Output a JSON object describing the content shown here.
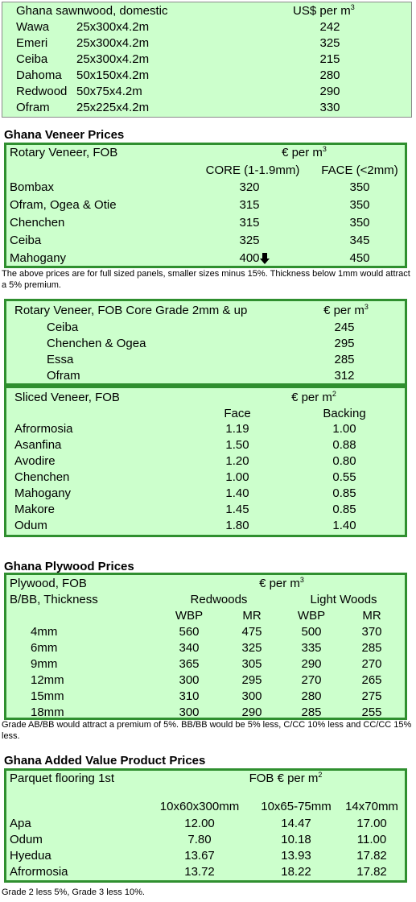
{
  "sawnwood": {
    "title": "Ghana sawnwood, domestic",
    "unit": {
      "text": "US$ per m",
      "sup": "3"
    },
    "rows": [
      [
        "Wawa",
        "25x300x4.2m",
        "242"
      ],
      [
        "Emeri",
        "25x300x4.2m",
        "325"
      ],
      [
        "Ceiba",
        "25x300x4.2m",
        "215"
      ],
      [
        "Dahoma",
        "50x150x4.2m",
        "280"
      ],
      [
        "Redwood",
        "50x75x4.2m",
        "290"
      ],
      [
        "Ofram",
        "25x225x4.2m",
        "330"
      ]
    ]
  },
  "veneer": {
    "heading": "Ghana Veneer Prices",
    "title": "Rotary Veneer, FOB",
    "unit": {
      "text": "€ per m",
      "sup": "3"
    },
    "columns": [
      "CORE (1-1.9mm)",
      "FACE (<2mm)"
    ],
    "rows": [
      [
        "Bombax",
        "320",
        "350"
      ],
      [
        "Ofram, Ogea  & Otie",
        "315",
        "350"
      ],
      [
        "Chenchen",
        "315",
        "350"
      ],
      [
        "Ceiba",
        "325",
        "345"
      ],
      [
        "Mahogany",
        "400",
        "450"
      ]
    ],
    "note": "The above prices are for full sized panels, smaller sizes minus 15%. Thickness below 1mm would attract a 5% premium."
  },
  "rotary_core": {
    "title": "Rotary Veneer, FOB Core Grade 2mm & up",
    "unit": {
      "text": "€ per m",
      "sup": "3"
    },
    "rows": [
      [
        "Ceiba",
        "245"
      ],
      [
        "Chenchen & Ogea",
        "295"
      ],
      [
        "Essa",
        "285"
      ],
      [
        "Ofram",
        "312"
      ]
    ]
  },
  "sliced": {
    "title": "Sliced Veneer, FOB",
    "unit": {
      "text": "€ per m",
      "sup": "2"
    },
    "columns": [
      "Face",
      "Backing"
    ],
    "rows": [
      [
        "Afrormosia",
        "1.19",
        "1.00"
      ],
      [
        "Asanfina",
        "1.50",
        "0.88"
      ],
      [
        "Avodire",
        "1.20",
        "0.80"
      ],
      [
        "Chenchen",
        "1.00",
        "0.55"
      ],
      [
        "Mahogany",
        "1.40",
        "0.85"
      ],
      [
        "Makore",
        "1.45",
        "0.85"
      ],
      [
        "Odum",
        "1.80",
        "1.40"
      ]
    ]
  },
  "plywood": {
    "heading": "Ghana Plywood Prices",
    "title": "Plywood, FOB",
    "unit": {
      "text": "€ per m",
      "sup": "3"
    },
    "subtitle": "B/BB, Thickness",
    "groups": [
      "Redwoods",
      "Light Woods"
    ],
    "columns": [
      "WBP",
      "MR",
      "WBP",
      "MR"
    ],
    "rows": [
      [
        "4mm",
        "560",
        "475",
        "500",
        "370"
      ],
      [
        "6mm",
        "340",
        "325",
        "335",
        "285"
      ],
      [
        "9mm",
        "365",
        "305",
        "290",
        "270"
      ],
      [
        "12mm",
        "300",
        "295",
        "270",
        "265"
      ],
      [
        "15mm",
        "310",
        "300",
        "280",
        "275"
      ],
      [
        "18mm",
        "300",
        "290",
        "285",
        "255"
      ]
    ],
    "note": "Grade AB/BB would attract a premium of 5%. BB/BB would be 5% less, C/CC 10% less and CC/CC 15% less."
  },
  "added_value": {
    "heading": "Ghana Added Value Product Prices",
    "title": "Parquet flooring 1st",
    "unit": {
      "text": "FOB € per m",
      "sup": "2"
    },
    "columns": [
      "10x60x300mm",
      "10x65-75mm",
      "14x70mm"
    ],
    "rows": [
      [
        "Apa",
        "12.00",
        "14.47",
        "17.00"
      ],
      [
        "Odum",
        "7.80",
        "10.18",
        "11.00"
      ],
      [
        "Hyedua",
        "13.67",
        "13.93",
        "17.82"
      ],
      [
        "Afrormosia",
        "13.72",
        "18.22",
        "17.82"
      ]
    ],
    "note": "Grade 2 less 5%, Grade 3 less 10%."
  }
}
